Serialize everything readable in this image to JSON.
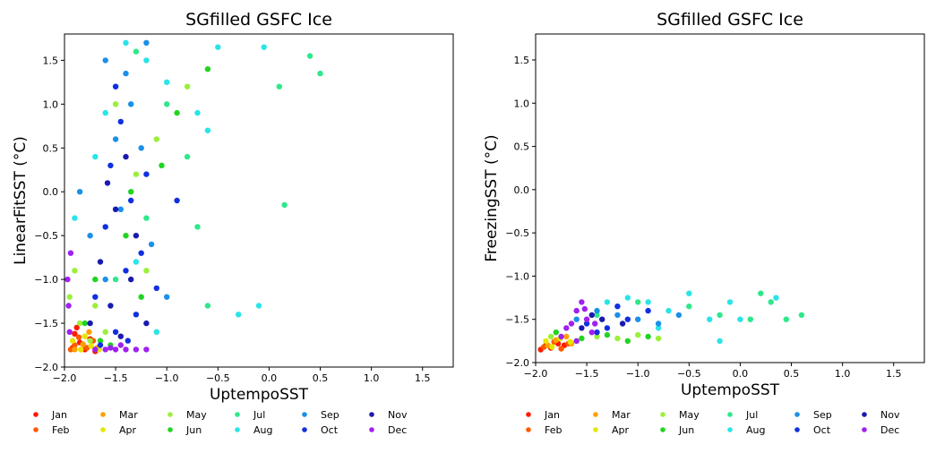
{
  "chart_data": [
    {
      "type": "scatter",
      "title": "SGfilled GSFC Ice",
      "xlabel": "UptempoSST",
      "ylabel": "LinearFitSST (°C)",
      "xlim": [
        -2.0,
        1.8
      ],
      "ylim": [
        -2.0,
        1.8
      ],
      "xticks": [
        -2.0,
        -1.5,
        -1.0,
        -0.5,
        0.0,
        0.5,
        1.0,
        1.5
      ],
      "yticks": [
        -2.0,
        -1.5,
        -1.0,
        -0.5,
        0.0,
        0.5,
        1.0,
        1.5
      ],
      "tick_labels_x": [
        "−2.0",
        "−1.5",
        "−1.0",
        "−0.5",
        "0.0",
        "0.5",
        "1.0",
        "1.5"
      ],
      "tick_labels_y": [
        "−2.0",
        "−1.5",
        "−1.0",
        "−0.5",
        "0.0",
        "0.5",
        "1.0",
        "1.5"
      ],
      "grid": false,
      "legend_position": "bottom",
      "series": [
        {
          "name": "Jan",
          "color": "#ff1a00",
          "points": [
            [
              -1.92,
              -1.78
            ],
            [
              -1.9,
              -1.62
            ],
            [
              -1.85,
              -1.72
            ],
            [
              -1.8,
              -1.8
            ],
            [
              -1.75,
              -1.68
            ],
            [
              -1.7,
              -1.82
            ],
            [
              -1.88,
              -1.55
            ]
          ]
        },
        {
          "name": "Feb",
          "color": "#ff5a00",
          "points": [
            [
              -1.94,
              -1.8
            ],
            [
              -1.86,
              -1.66
            ],
            [
              -1.78,
              -1.78
            ],
            [
              -1.72,
              -1.7
            ],
            [
              -1.9,
              -1.75
            ]
          ]
        },
        {
          "name": "Mar",
          "color": "#ffa000",
          "points": [
            [
              -1.9,
              -1.8
            ],
            [
              -1.82,
              -1.74
            ],
            [
              -1.76,
              -1.6
            ],
            [
              -1.68,
              -1.78
            ],
            [
              -1.84,
              -1.8
            ]
          ]
        },
        {
          "name": "Apr",
          "color": "#e6e600",
          "points": [
            [
              -1.92,
              -1.7
            ],
            [
              -1.84,
              -1.8
            ],
            [
              -1.74,
              -1.76
            ],
            [
              -1.66,
              -1.8
            ],
            [
              -1.8,
              -1.65
            ]
          ]
        },
        {
          "name": "May",
          "color": "#9af03a",
          "points": [
            [
              -1.95,
              -1.2
            ],
            [
              -1.9,
              -0.9
            ],
            [
              -1.85,
              -1.5
            ],
            [
              -1.7,
              -1.3
            ],
            [
              -1.6,
              -1.6
            ],
            [
              -1.3,
              0.2
            ],
            [
              -1.1,
              0.6
            ],
            [
              -0.8,
              1.2
            ],
            [
              -1.5,
              1.0
            ],
            [
              -1.75,
              -1.7
            ],
            [
              -1.2,
              -0.9
            ]
          ]
        },
        {
          "name": "Jun",
          "color": "#22d422",
          "points": [
            [
              -1.8,
              -1.5
            ],
            [
              -1.7,
              -1.0
            ],
            [
              -1.65,
              -1.7
            ],
            [
              -1.4,
              -0.5
            ],
            [
              -1.25,
              -1.2
            ],
            [
              -1.05,
              0.3
            ],
            [
              -0.9,
              0.9
            ],
            [
              -0.6,
              1.4
            ],
            [
              -1.55,
              -1.75
            ],
            [
              -1.35,
              0.0
            ]
          ]
        },
        {
          "name": "Jul",
          "color": "#2ee88a",
          "points": [
            [
              -1.5,
              -1.0
            ],
            [
              -1.3,
              1.6
            ],
            [
              -1.2,
              -0.3
            ],
            [
              -1.0,
              1.0
            ],
            [
              -0.8,
              0.4
            ],
            [
              -0.6,
              -1.3
            ],
            [
              0.1,
              1.2
            ],
            [
              0.4,
              1.55
            ],
            [
              0.5,
              1.35
            ],
            [
              0.15,
              -0.15
            ],
            [
              -0.7,
              -0.4
            ]
          ]
        },
        {
          "name": "Aug",
          "color": "#29e4e8",
          "points": [
            [
              -1.9,
              -0.3
            ],
            [
              -1.7,
              0.4
            ],
            [
              -1.5,
              1.2
            ],
            [
              -1.4,
              1.7
            ],
            [
              -1.2,
              1.5
            ],
            [
              -1.0,
              1.25
            ],
            [
              -0.7,
              0.9
            ],
            [
              -0.5,
              1.65
            ],
            [
              -0.3,
              -1.4
            ],
            [
              -0.1,
              -1.3
            ],
            [
              -0.05,
              1.65
            ],
            [
              -1.3,
              -0.8
            ],
            [
              -1.1,
              -1.6
            ],
            [
              -0.6,
              0.7
            ],
            [
              -1.6,
              0.9
            ]
          ]
        },
        {
          "name": "Sep",
          "color": "#1a90e8",
          "points": [
            [
              -1.85,
              0.0
            ],
            [
              -1.75,
              -0.5
            ],
            [
              -1.6,
              1.5
            ],
            [
              -1.5,
              0.6
            ],
            [
              -1.45,
              -0.2
            ],
            [
              -1.35,
              1.0
            ],
            [
              -1.25,
              0.5
            ],
            [
              -1.15,
              -0.6
            ],
            [
              -1.0,
              -1.2
            ],
            [
              -1.6,
              -1.0
            ],
            [
              -1.4,
              1.35
            ],
            [
              -1.2,
              1.7
            ]
          ]
        },
        {
          "name": "Oct",
          "color": "#1030e0",
          "points": [
            [
              -1.7,
              -1.2
            ],
            [
              -1.6,
              -0.4
            ],
            [
              -1.55,
              0.3
            ],
            [
              -1.5,
              -1.6
            ],
            [
              -1.45,
              0.8
            ],
            [
              -1.4,
              -0.9
            ],
            [
              -1.35,
              -0.1
            ],
            [
              -1.3,
              -1.4
            ],
            [
              -1.25,
              -0.7
            ],
            [
              -1.2,
              0.2
            ],
            [
              -1.1,
              -1.1
            ],
            [
              -0.9,
              -0.1
            ],
            [
              -1.5,
              1.2
            ],
            [
              -1.65,
              -1.75
            ],
            [
              -1.38,
              -1.7
            ]
          ]
        },
        {
          "name": "Nov",
          "color": "#1a1ab0",
          "points": [
            [
              -1.75,
              -1.5
            ],
            [
              -1.65,
              -0.8
            ],
            [
              -1.55,
              -1.3
            ],
            [
              -1.5,
              -0.2
            ],
            [
              -1.45,
              -1.65
            ],
            [
              -1.4,
              0.4
            ],
            [
              -1.35,
              -1.0
            ],
            [
              -1.3,
              -0.5
            ],
            [
              -1.2,
              -1.5
            ],
            [
              -1.58,
              0.1
            ]
          ]
        },
        {
          "name": "Dec",
          "color": "#a020f0",
          "points": [
            [
              -1.97,
              -1.0
            ],
            [
              -1.96,
              -1.3
            ],
            [
              -1.95,
              -1.6
            ],
            [
              -1.94,
              -0.7
            ],
            [
              -1.7,
              -1.8
            ],
            [
              -1.6,
              -1.8
            ],
            [
              -1.5,
              -1.8
            ],
            [
              -1.4,
              -1.8
            ],
            [
              -1.3,
              -1.8
            ],
            [
              -1.2,
              -1.8
            ],
            [
              -1.45,
              -1.75
            ],
            [
              -1.55,
              -1.78
            ]
          ]
        }
      ]
    },
    {
      "type": "scatter",
      "title": "SGfilled GSFC Ice",
      "xlabel": "UptempoSST",
      "ylabel": "FreezingSST (°C)",
      "xlim": [
        -2.0,
        1.8
      ],
      "ylim": [
        -2.0,
        1.8
      ],
      "xticks": [
        -2.0,
        -1.5,
        -1.0,
        -0.5,
        0.0,
        0.5,
        1.0,
        1.5
      ],
      "yticks": [
        -2.0,
        -1.5,
        -1.0,
        -0.5,
        0.0,
        0.5,
        1.0,
        1.5
      ],
      "tick_labels_x": [
        "−2.0",
        "−1.5",
        "−1.0",
        "−0.5",
        "0.0",
        "0.5",
        "1.0",
        "1.5"
      ],
      "tick_labels_y": [
        "−2.0",
        "−1.5",
        "−1.0",
        "−0.5",
        "0.0",
        "0.5",
        "1.0",
        "1.5"
      ],
      "grid": false,
      "legend_position": "bottom",
      "series": [
        {
          "name": "Jan",
          "color": "#ff1a00",
          "points": [
            [
              -1.95,
              -1.85
            ],
            [
              -1.9,
              -1.8
            ],
            [
              -1.85,
              -1.83
            ],
            [
              -1.78,
              -1.78
            ],
            [
              -1.72,
              -1.8
            ]
          ]
        },
        {
          "name": "Feb",
          "color": "#ff5a00",
          "points": [
            [
              -1.92,
              -1.82
            ],
            [
              -1.82,
              -1.76
            ],
            [
              -1.75,
              -1.84
            ],
            [
              -1.68,
              -1.78
            ]
          ]
        },
        {
          "name": "Mar",
          "color": "#ffa000",
          "points": [
            [
              -1.88,
              -1.8
            ],
            [
              -1.8,
              -1.74
            ],
            [
              -1.7,
              -1.7
            ],
            [
              -1.65,
              -1.78
            ]
          ]
        },
        {
          "name": "Apr",
          "color": "#e6e600",
          "points": [
            [
              -1.9,
              -1.75
            ],
            [
              -1.84,
              -1.82
            ],
            [
              -1.76,
              -1.72
            ],
            [
              -1.66,
              -1.76
            ]
          ]
        },
        {
          "name": "May",
          "color": "#9af03a",
          "points": [
            [
              -1.85,
              -1.7
            ],
            [
              -1.6,
              -1.75
            ],
            [
              -1.4,
              -1.7
            ],
            [
              -1.2,
              -1.72
            ],
            [
              -1.0,
              -1.68
            ],
            [
              -0.8,
              -1.72
            ]
          ]
        },
        {
          "name": "Jun",
          "color": "#22d422",
          "points": [
            [
              -1.8,
              -1.65
            ],
            [
              -1.55,
              -1.72
            ],
            [
              -1.3,
              -1.68
            ],
            [
              -1.1,
              -1.75
            ],
            [
              -0.9,
              -1.7
            ]
          ]
        },
        {
          "name": "Jul",
          "color": "#2ee88a",
          "points": [
            [
              -1.4,
              -1.45
            ],
            [
              -1.0,
              -1.3
            ],
            [
              -0.5,
              -1.35
            ],
            [
              -0.2,
              -1.45
            ],
            [
              0.1,
              -1.5
            ],
            [
              0.3,
              -1.3
            ],
            [
              0.45,
              -1.5
            ],
            [
              0.6,
              -1.45
            ],
            [
              0.2,
              -1.2
            ]
          ]
        },
        {
          "name": "Aug",
          "color": "#29e4e8",
          "points": [
            [
              -1.3,
              -1.3
            ],
            [
              -1.1,
              -1.25
            ],
            [
              -0.9,
              -1.3
            ],
            [
              -0.7,
              -1.4
            ],
            [
              -0.5,
              -1.2
            ],
            [
              -0.3,
              -1.5
            ],
            [
              -0.1,
              -1.3
            ],
            [
              0.0,
              -1.5
            ],
            [
              0.35,
              -1.25
            ],
            [
              -0.2,
              -1.75
            ],
            [
              -0.8,
              -1.6
            ]
          ]
        },
        {
          "name": "Sep",
          "color": "#1a90e8",
          "points": [
            [
              -1.6,
              -1.5
            ],
            [
              -1.4,
              -1.4
            ],
            [
              -1.2,
              -1.45
            ],
            [
              -1.0,
              -1.5
            ],
            [
              -0.8,
              -1.55
            ],
            [
              -0.6,
              -1.45
            ]
          ]
        },
        {
          "name": "Oct",
          "color": "#1030e0",
          "points": [
            [
              -1.5,
              -1.55
            ],
            [
              -1.3,
              -1.6
            ],
            [
              -1.1,
              -1.5
            ],
            [
              -0.9,
              -1.4
            ],
            [
              -1.2,
              -1.35
            ],
            [
              -1.4,
              -1.65
            ]
          ]
        },
        {
          "name": "Nov",
          "color": "#1a1ab0",
          "points": [
            [
              -1.55,
              -1.6
            ],
            [
              -1.35,
              -1.5
            ],
            [
              -1.15,
              -1.55
            ],
            [
              -1.45,
              -1.45
            ]
          ]
        },
        {
          "name": "Dec",
          "color": "#a020f0",
          "points": [
            [
              -1.75,
              -1.7
            ],
            [
              -1.65,
              -1.55
            ],
            [
              -1.6,
              -1.4
            ],
            [
              -1.55,
              -1.3
            ],
            [
              -1.5,
              -1.5
            ],
            [
              -1.45,
              -1.65
            ],
            [
              -1.6,
              -1.75
            ],
            [
              -1.7,
              -1.6
            ],
            [
              -1.52,
              -1.38
            ],
            [
              -1.42,
              -1.55
            ]
          ]
        }
      ]
    }
  ]
}
